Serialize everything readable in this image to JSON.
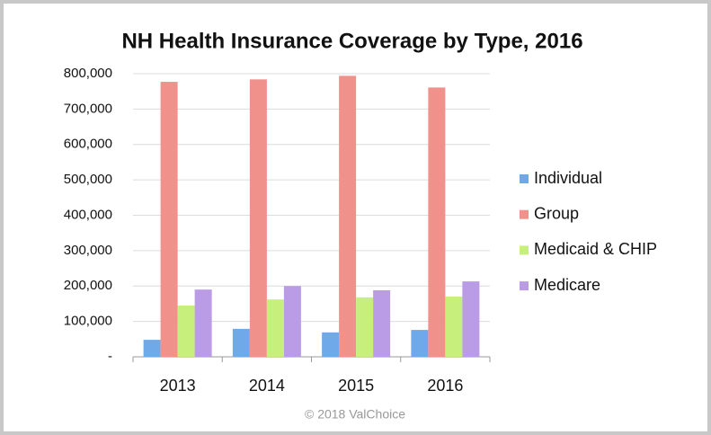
{
  "chart_data": {
    "type": "bar",
    "title": "NH Health Insurance Coverage by Type, 2016",
    "source": "© 2018 ValChoice",
    "categories": [
      "2013",
      "2014",
      "2015",
      "2016"
    ],
    "series": [
      {
        "name": "Individual",
        "color": "#6fa9ea",
        "values": [
          48000,
          79000,
          69000,
          76000
        ]
      },
      {
        "name": "Group",
        "color": "#f1918b",
        "values": [
          777000,
          784000,
          794000,
          761000
        ]
      },
      {
        "name": "Medicaid & CHIP",
        "color": "#c6ef7c",
        "values": [
          145000,
          162000,
          168000,
          170000
        ]
      },
      {
        "name": "Medicare",
        "color": "#b99be6",
        "values": [
          190000,
          200000,
          188000,
          213000
        ]
      }
    ],
    "ylim": [
      0,
      800000
    ],
    "yticks": [
      {
        "value": 0,
        "label": "-"
      },
      {
        "value": 100000,
        "label": "100,000"
      },
      {
        "value": 200000,
        "label": "200,000"
      },
      {
        "value": 300000,
        "label": "300,000"
      },
      {
        "value": 400000,
        "label": "400,000"
      },
      {
        "value": 500000,
        "label": "500,000"
      },
      {
        "value": 600000,
        "label": "600,000"
      },
      {
        "value": 700000,
        "label": "700,000"
      },
      {
        "value": 800000,
        "label": "800,000"
      }
    ],
    "grid": true,
    "legend": "right"
  }
}
